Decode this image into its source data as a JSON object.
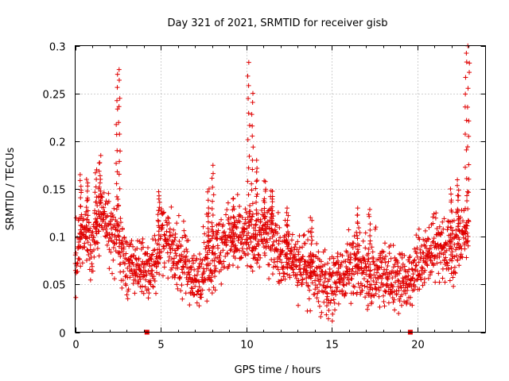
{
  "chart_data": {
    "type": "scatter",
    "title": "Day 321 of 2021, SRMTID for receiver gisb",
    "xlabel": "GPS time / hours",
    "ylabel": "SRMTID / TECUs",
    "xlim": [
      0,
      24
    ],
    "ylim": [
      0,
      0.3
    ],
    "xticks": [
      0,
      5,
      10,
      15,
      20
    ],
    "xtick_labels": [
      "0",
      "5",
      "10",
      "15",
      "20"
    ],
    "yticks": [
      0,
      0.05,
      0.1,
      0.15,
      0.2,
      0.25,
      0.3
    ],
    "ytick_labels": [
      "0",
      "0.05",
      "0.1",
      "0.15",
      "0.2",
      "0.25",
      "0.3"
    ],
    "grid": true,
    "legend": "none",
    "marker": "plus",
    "color": "#e00000",
    "series": [
      {
        "name": "SRMTID",
        "trend_hours": [
          0,
          0.5,
          1,
          1.5,
          2,
          2.5,
          3,
          3.5,
          4,
          4.5,
          5,
          5.5,
          6,
          6.5,
          7,
          7.5,
          8,
          8.5,
          9,
          9.5,
          10,
          10.5,
          11,
          11.5,
          12,
          12.5,
          13,
          13.5,
          14,
          14.5,
          15,
          15.5,
          16,
          16.5,
          17,
          17.5,
          18,
          18.5,
          19,
          19.5,
          20,
          20.5,
          21,
          21.5,
          22,
          22.5,
          23
        ],
        "trend_values": [
          0.07,
          0.11,
          0.09,
          0.12,
          0.11,
          0.1,
          0.07,
          0.07,
          0.07,
          0.06,
          0.1,
          0.09,
          0.08,
          0.07,
          0.05,
          0.07,
          0.08,
          0.09,
          0.1,
          0.09,
          0.1,
          0.1,
          0.1,
          0.1,
          0.08,
          0.08,
          0.07,
          0.07,
          0.06,
          0.05,
          0.05,
          0.06,
          0.07,
          0.07,
          0.06,
          0.06,
          0.06,
          0.06,
          0.06,
          0.05,
          0.07,
          0.08,
          0.09,
          0.09,
          0.08,
          0.1,
          0.1
        ],
        "spikes": [
          {
            "hour": 0.35,
            "peak": 0.165
          },
          {
            "hour": 0.7,
            "peak": 0.16
          },
          {
            "hour": 1.2,
            "peak": 0.17
          },
          {
            "hour": 1.45,
            "peak": 0.185
          },
          {
            "hour": 2.45,
            "peak": 0.27
          },
          {
            "hour": 2.6,
            "peak": 0.275
          },
          {
            "hour": 4.9,
            "peak": 0.147
          },
          {
            "hour": 7.8,
            "peak": 0.15
          },
          {
            "hour": 8.05,
            "peak": 0.175
          },
          {
            "hour": 9.25,
            "peak": 0.14
          },
          {
            "hour": 10.15,
            "peak": 0.285
          },
          {
            "hour": 10.35,
            "peak": 0.25
          },
          {
            "hour": 10.6,
            "peak": 0.18
          },
          {
            "hour": 11.1,
            "peak": 0.16
          },
          {
            "hour": 11.5,
            "peak": 0.15
          },
          {
            "hour": 12.4,
            "peak": 0.13
          },
          {
            "hour": 13.8,
            "peak": 0.12
          },
          {
            "hour": 16.5,
            "peak": 0.13
          },
          {
            "hour": 17.2,
            "peak": 0.13
          },
          {
            "hour": 22.0,
            "peak": 0.15
          },
          {
            "hour": 22.4,
            "peak": 0.16
          },
          {
            "hour": 22.85,
            "peak": 0.295
          },
          {
            "hour": 23.0,
            "peak": 0.3
          }
        ]
      }
    ],
    "axis_markers": [
      {
        "hour": 4.2,
        "value": 0
      },
      {
        "hour": 19.6,
        "value": 0
      }
    ]
  }
}
